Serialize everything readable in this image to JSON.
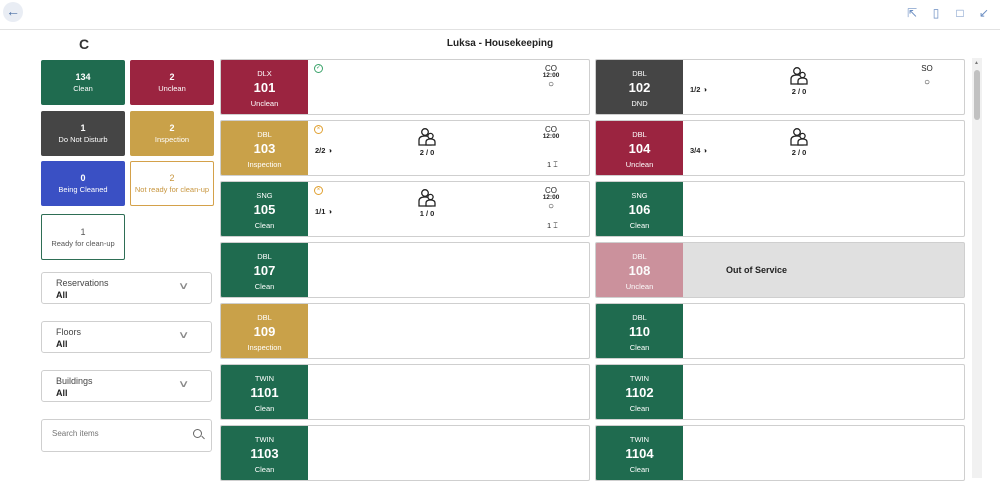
{
  "header": {
    "title": "Luksa - Housekeeping",
    "back_icon": "arrow-left-icon",
    "refresh_glyph": "C",
    "toolbar_icons": [
      "share-icon",
      "bookmark-icon",
      "popout-icon",
      "collapse-icon"
    ]
  },
  "summary": [
    {
      "count": "134",
      "label": "Clean",
      "color": "#1f6b4f",
      "style": "solid"
    },
    {
      "count": "2",
      "label": "Unclean",
      "color": "#9b2440",
      "style": "solid"
    },
    {
      "count": "1",
      "label": "Do Not Disturb",
      "color": "#454545",
      "style": "solid"
    },
    {
      "count": "2",
      "label": "Inspection",
      "color": "#c9a149",
      "style": "solid"
    },
    {
      "count": "0",
      "label": "Being Cleaned",
      "color": "#3a50c4",
      "style": "solid"
    },
    {
      "count": "2",
      "label": "Not ready for clean-up",
      "color": "#d4a14a",
      "style": "outline-orange"
    },
    {
      "count": "1",
      "label": "Ready for clean-up",
      "color": "#2e6e55",
      "style": "outline-green"
    }
  ],
  "filters": [
    {
      "label": "Reservations",
      "value": "All"
    },
    {
      "label": "Floors",
      "value": "All"
    },
    {
      "label": "Buildings",
      "value": "All"
    }
  ],
  "search": {
    "placeholder": "Search items"
  },
  "rooms": [
    {
      "number": "101",
      "type": "DLX",
      "status": "Unclean",
      "color": "#9b2440",
      "state_icon": "check-circle-icon",
      "state_color": "#3aa36a",
      "checkout": {
        "label": "CO",
        "time": "12:00",
        "has_comment": true
      }
    },
    {
      "number": "102",
      "type": "DBL",
      "status": "DND",
      "color": "#454545",
      "occupancy": "1/2",
      "persons": "2 / 0",
      "service": {
        "label": "SO",
        "has_comment": true
      }
    },
    {
      "number": "103",
      "type": "DBL",
      "status": "Inspection",
      "color": "#c9a149",
      "state_icon": "x-circle-icon",
      "state_color": "#e0a030",
      "occupancy": "2/2",
      "persons": "2 / 0",
      "checkout": {
        "label": "CO",
        "time": "12:00"
      },
      "beds": "1"
    },
    {
      "number": "104",
      "type": "DBL",
      "status": "Unclean",
      "color": "#9b2440",
      "occupancy": "3/4",
      "persons": "2 / 0"
    },
    {
      "number": "105",
      "type": "SNG",
      "status": "Clean",
      "color": "#1f6b4f",
      "state_icon": "x-circle-icon",
      "state_color": "#e0a030",
      "occupancy": "1/1",
      "persons": "1 / 0",
      "checkout": {
        "label": "CO",
        "time": "12:00",
        "has_comment": true
      },
      "beds": "1"
    },
    {
      "number": "106",
      "type": "SNG",
      "status": "Clean",
      "color": "#1f6b4f"
    },
    {
      "number": "107",
      "type": "DBL",
      "status": "Clean",
      "color": "#1f6b4f"
    },
    {
      "number": "108",
      "type": "DBL",
      "status": "Unclean",
      "color": "#c98995",
      "out_of_service": "Out of Service"
    },
    {
      "number": "109",
      "type": "DBL",
      "status": "Inspection",
      "color": "#c9a149"
    },
    {
      "number": "110",
      "type": "DBL",
      "status": "Clean",
      "color": "#1f6b4f"
    },
    {
      "number": "1101",
      "type": "TWIN",
      "status": "Clean",
      "color": "#1f6b4f"
    },
    {
      "number": "1102",
      "type": "TWIN",
      "status": "Clean",
      "color": "#1f6b4f"
    },
    {
      "number": "1103",
      "type": "TWIN",
      "status": "Clean",
      "color": "#1f6b4f"
    },
    {
      "number": "1104",
      "type": "TWIN",
      "status": "Clean",
      "color": "#1f6b4f"
    }
  ]
}
